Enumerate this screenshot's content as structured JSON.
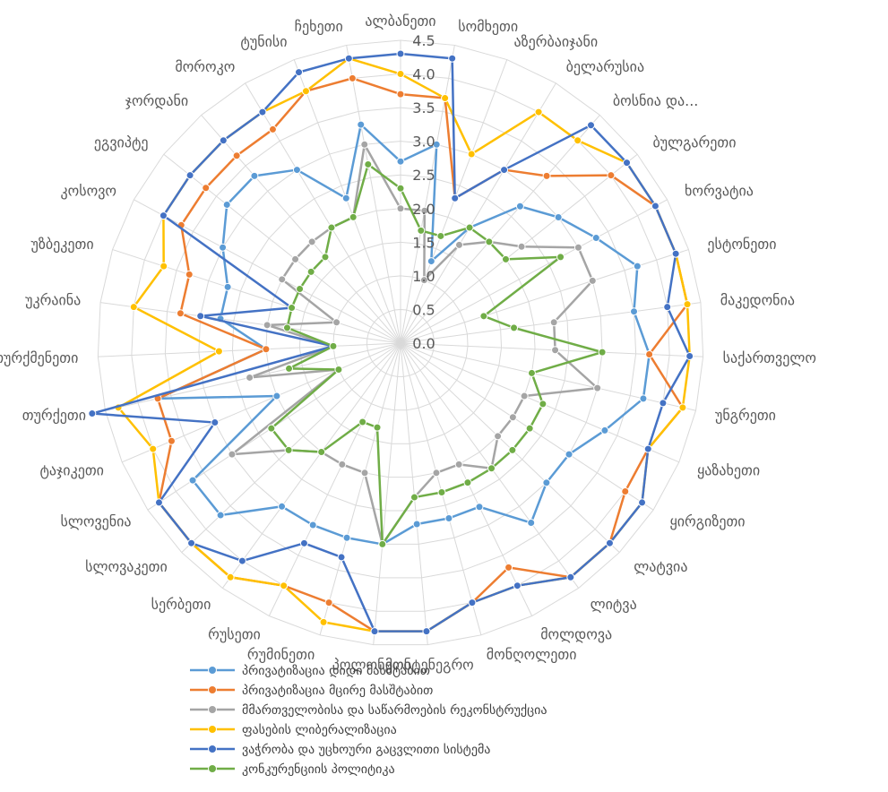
{
  "chart_data": {
    "type": "radar",
    "title": "",
    "rlim": [
      0,
      4.5
    ],
    "ticks": [
      "0.0",
      "0.5",
      "1.0",
      "1.5",
      "2.0",
      "2.5",
      "3.0",
      "3.5",
      "4.0",
      "4.5"
    ],
    "grid": true,
    "legend_position": "bottom",
    "categories": [
      "ალბანეთი",
      "სომხეთი",
      "აზერბაიჯანი",
      "ბელარუსია",
      "ბოსნია და...",
      "ბულგარეთი",
      "ხორვატია",
      "ესტონეთი",
      "მაკედონია",
      "საქართველო",
      "უნგრეთი",
      "ყაზახეთი",
      "ყირგიზეთი",
      "ლატვია",
      "ლიტვა",
      "მოლდოვა",
      "მონღოლეთი",
      "მონტენეგრო",
      "პოლონეთი",
      "რუმინეთი",
      "რუსეთი",
      "სერბეთი",
      "სლოვაკეთი",
      "სლოვენია",
      "ტაჯიკეთი",
      "თურქეთი",
      "თურქმენეთი",
      "უკრაინა",
      "უზბეკეთი",
      "კოსოვო",
      "ეგვიპტე",
      "ჯორდანი",
      "მოროკო",
      "ტუნისი",
      "ჩეხეთი"
    ],
    "series": [
      {
        "name": "პრივატიზაცია დიდი მასშტაბით",
        "color": "#5B9BD5",
        "values": [
          2.7,
          3.0,
          1.3,
          2.0,
          2.7,
          3.0,
          3.3,
          3.7,
          3.5,
          3.7,
          3.7,
          3.3,
          3.0,
          3.0,
          3.3,
          2.7,
          2.7,
          2.7,
          3.0,
          3.0,
          3.0,
          3.0,
          3.7,
          3.7,
          2.0,
          3.7,
          2.0,
          2.7,
          2.7,
          3.0,
          3.3,
          3.3,
          3.0,
          2.3,
          3.3
        ]
      },
      {
        "name": "პრივატიზაცია მცირე მასშტაბით",
        "color": "#ED7D31",
        "values": [
          3.7,
          3.7,
          2.3,
          3.0,
          3.3,
          4.0,
          4.3,
          4.3,
          4.3,
          3.7,
          4.3,
          4.0,
          4.0,
          4.3,
          4.3,
          3.7,
          4.0,
          4.3,
          4.3,
          4.0,
          4.0,
          4.3,
          4.3,
          4.3,
          3.7,
          3.7,
          2.0,
          3.3,
          3.3,
          3.7,
          3.7,
          3.7,
          3.7,
          4.0,
          4.0
        ]
      },
      {
        "name": "მმართველობისა და საწარმოების რეკონსტრუქცია",
        "color": "#A5A5A5",
        "values": [
          2.0,
          2.0,
          1.0,
          1.7,
          2.0,
          2.3,
          3.0,
          3.0,
          2.3,
          2.3,
          3.0,
          2.0,
          2.0,
          2.0,
          2.3,
          2.0,
          2.0,
          2.3,
          3.0,
          2.0,
          2.0,
          2.0,
          2.3,
          3.0,
          1.0,
          2.3,
          1.0,
          2.0,
          1.0,
          2.0,
          2.0,
          2.0,
          2.0,
          2.0,
          3.0
        ]
      },
      {
        "name": "ფასების ლიბერალიზაცია",
        "color": "#FFC000",
        "values": [
          4.0,
          3.7,
          3.0,
          4.0,
          4.0,
          4.3,
          4.3,
          4.3,
          4.3,
          4.3,
          4.3,
          4.0,
          4.3,
          4.3,
          4.3,
          4.0,
          4.0,
          4.3,
          4.3,
          4.3,
          4.0,
          4.3,
          4.3,
          4.3,
          4.0,
          4.3,
          2.7,
          4.0,
          3.7,
          4.0,
          4.0,
          4.0,
          4.0,
          4.0,
          4.3
        ]
      },
      {
        "name": "ვაჭრობა და უცხოური გაცვლითი სისტემა",
        "color": "#4472C4",
        "values": [
          4.3,
          4.3,
          2.3,
          3.0,
          4.3,
          4.3,
          4.3,
          4.3,
          4.0,
          4.3,
          4.0,
          4.0,
          4.3,
          4.3,
          4.3,
          4.0,
          4.0,
          4.3,
          4.3,
          3.3,
          3.3,
          4.0,
          4.3,
          4.3,
          3.0,
          4.7,
          1.0,
          3.0,
          1.7,
          4.0,
          4.0,
          4.0,
          4.0,
          4.3,
          4.3
        ]
      },
      {
        "name": "კონკურენციის პოლიტიკა",
        "color": "#70AD47",
        "values": [
          2.3,
          1.7,
          1.7,
          2.0,
          2.0,
          2.0,
          2.7,
          1.3,
          1.7,
          3.0,
          2.0,
          2.3,
          2.3,
          2.3,
          2.3,
          2.3,
          2.3,
          2.3,
          3.0,
          1.3,
          1.3,
          2.0,
          2.3,
          2.3,
          1.0,
          1.7,
          1.0,
          1.7,
          1.7,
          1.7,
          1.7,
          1.7,
          2.0,
          2.0,
          2.7
        ]
      }
    ]
  }
}
